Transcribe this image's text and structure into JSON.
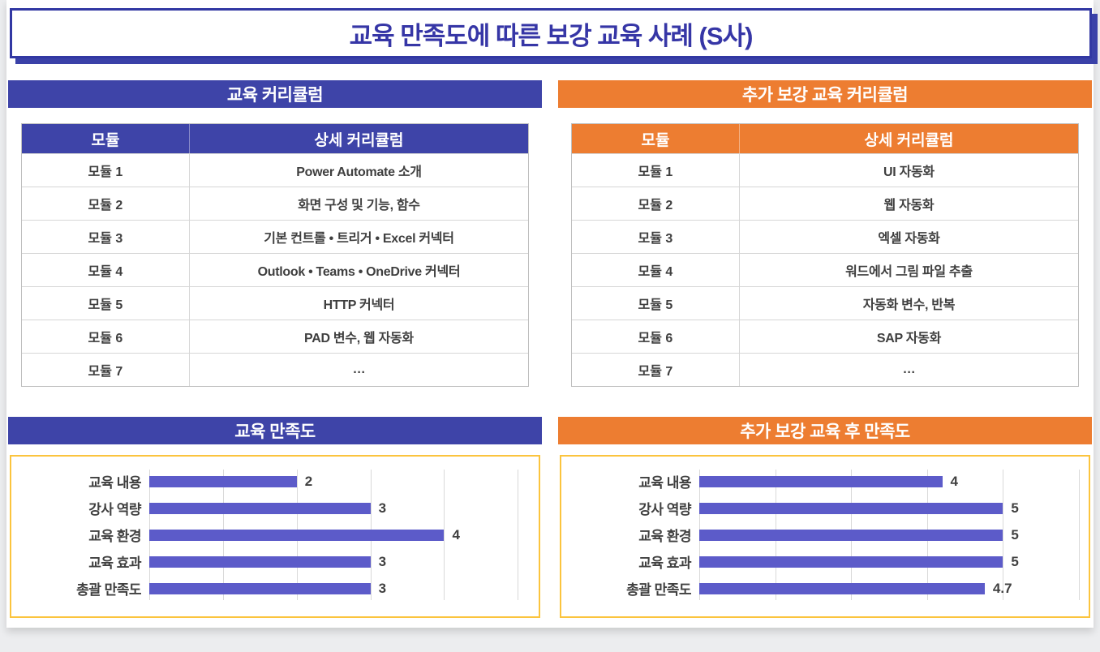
{
  "page_title": "교육 만족도에 따른 보강 교육 사례 (S사)",
  "colors": {
    "navy_title": "#3636A6",
    "blue_header": "#3E44A8",
    "orange_header": "#ED7D31",
    "bar_purple": "#5C5BC9",
    "chart_border_gold": "#FBC43E",
    "gridline": "#D9D9D9"
  },
  "sections": {
    "left": {
      "curriculum_title": "교육 커리큘럼",
      "table": {
        "columns": [
          "모듈",
          "상세 커리큘럼"
        ],
        "rows": [
          [
            "모듈 1",
            "Power Automate 소개"
          ],
          [
            "모듈 2",
            "화면 구성 및 기능, 함수"
          ],
          [
            "모듈 3",
            "기본 컨트롤 • 트리거 • Excel 커넥터"
          ],
          [
            "모듈 4",
            "Outlook • Teams • OneDrive 커넥터"
          ],
          [
            "모듈 5",
            "HTTP 커넥터"
          ],
          [
            "모듈 6",
            "PAD 변수, 웹 자동화"
          ],
          [
            "모듈 7",
            "…"
          ]
        ]
      },
      "chart_title": "교육 만족도"
    },
    "right": {
      "curriculum_title": "추가 보강 교육 커리큘럼",
      "table": {
        "columns": [
          "모듈",
          "상세 커리큘럼"
        ],
        "rows": [
          [
            "모듈 1",
            "UI 자동화"
          ],
          [
            "모듈 2",
            "웹 자동화"
          ],
          [
            "모듈 3",
            "엑셀 자동화"
          ],
          [
            "모듈 4",
            "워드에서 그림 파일 추출"
          ],
          [
            "모듈 5",
            "자동화 변수, 반복"
          ],
          [
            "모듈 6",
            "SAP 자동화"
          ],
          [
            "모듈 7",
            "…"
          ]
        ]
      },
      "chart_title": "추가 보강 교육 후 만족도"
    }
  },
  "chart_data": [
    {
      "type": "bar",
      "orientation": "horizontal",
      "title": "교육 만족도",
      "categories": [
        "교육 내용",
        "강사 역량",
        "교육 환경",
        "교육 효과",
        "총괄 만족도"
      ],
      "values": [
        2,
        3,
        4,
        3,
        3
      ],
      "data_labels": [
        "2",
        "3",
        "4",
        "3",
        "3"
      ],
      "xlabel": "",
      "ylabel": "",
      "xlim": [
        0,
        5.15
      ],
      "ticks": [
        0,
        1,
        2,
        3,
        4,
        5
      ],
      "grid": true,
      "legend": false,
      "bar_color": "#5C5BC9"
    },
    {
      "type": "bar",
      "orientation": "horizontal",
      "title": "추가 보강 교육 후 만족도",
      "categories": [
        "교육 내용",
        "강사 역량",
        "교육 환경",
        "교육 효과",
        "총괄 만족도"
      ],
      "values": [
        4,
        5,
        5,
        5,
        4.7
      ],
      "data_labels": [
        "4",
        "5",
        "5",
        "5",
        "4.7"
      ],
      "xlabel": "",
      "ylabel": "",
      "xlim": [
        0,
        6.25
      ],
      "ticks": [
        0,
        1.25,
        2.5,
        3.75,
        5,
        6.25
      ],
      "grid": true,
      "legend": false,
      "bar_color": "#5C5BC9"
    }
  ]
}
